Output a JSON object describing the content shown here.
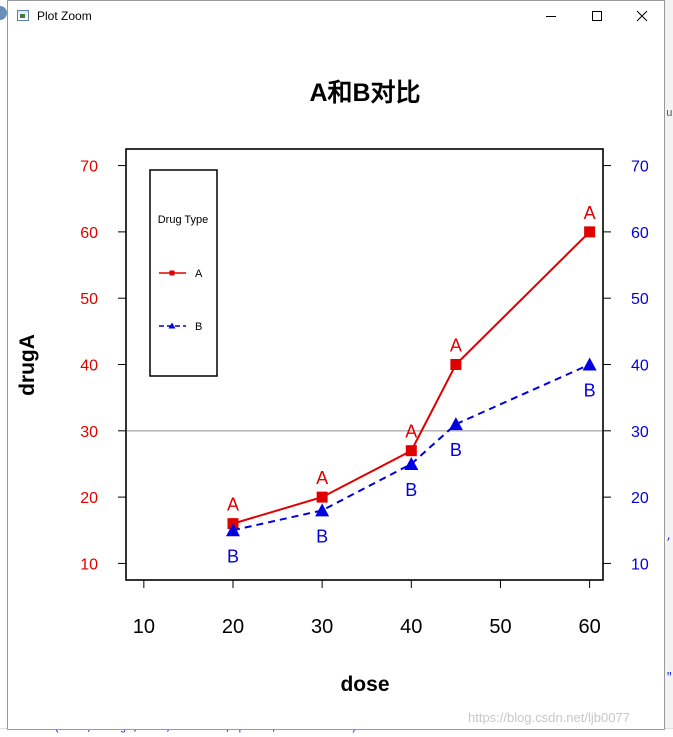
{
  "window": {
    "title": "Plot Zoom",
    "icon": "plot-window-icon",
    "buttons": [
      "minimize-icon",
      "maximize-icon",
      "close-icon"
    ]
  },
  "background": {
    "console_line": "> text(dose, drugB, \"B\", cex=0.8, pos=1, col=\"blue\")",
    "watermark": "https://blog.csdn.net/ljb0077",
    "edge_fragments": [
      ",",
      "\"",
      "ur"
    ]
  },
  "chart_data": {
    "type": "line",
    "title": "A和B对比",
    "xlabel": "dose",
    "ylabel": "drugA",
    "x": [
      20,
      30,
      40,
      45,
      60
    ],
    "xlim": [
      8,
      61.5
    ],
    "ylim": [
      7.5,
      72.5
    ],
    "x_ticks": [
      "10",
      "20",
      "30",
      "40",
      "50",
      "60"
    ],
    "y_ticks_left": [
      "10",
      "20",
      "30",
      "40",
      "50",
      "60",
      "70"
    ],
    "y_ticks_right": [
      "10",
      "20",
      "30",
      "40",
      "50",
      "60",
      "70"
    ],
    "reference_line": {
      "y": 30,
      "color": "#bbbbbb"
    },
    "series": [
      {
        "name": "A",
        "values": [
          16,
          20,
          27,
          40,
          60
        ],
        "color": "#e00000",
        "marker": "square",
        "line": "solid",
        "point_labels": [
          "A",
          "A",
          "A",
          "A",
          "A"
        ],
        "label_position": "above"
      },
      {
        "name": "B",
        "values": [
          15,
          18,
          25,
          31,
          40
        ],
        "color": "#0000e0",
        "marker": "triangle",
        "line": "dashed",
        "point_labels": [
          "B",
          "B",
          "B",
          "B",
          "B"
        ],
        "label_position": "below"
      }
    ],
    "legend": {
      "title": "Drug Type",
      "placement": "top-left",
      "entries": [
        "A",
        "B"
      ]
    },
    "left_axis_color": "#e00000",
    "right_axis_color": "#0000e0",
    "grid": false
  }
}
